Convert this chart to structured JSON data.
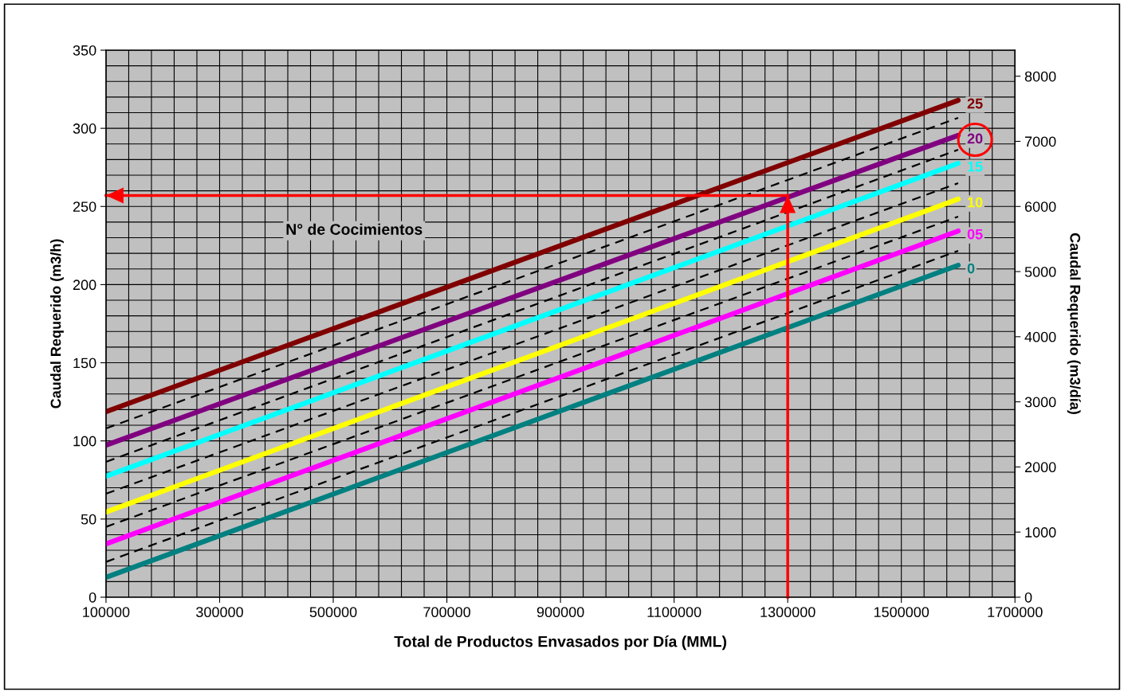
{
  "chart_data": {
    "type": "line",
    "xlabel": "Total de Productos Envasados por Día (MML)",
    "ylabel": "Caudal Requerido (m3/h)",
    "y2label": "Caudal Requerido (m3/día)",
    "annotations": [
      "N° de Cocimientos"
    ],
    "xlim": [
      100000,
      1700000
    ],
    "xticks": [
      100000,
      300000,
      500000,
      700000,
      900000,
      1100000,
      1300000,
      1500000,
      1700000
    ],
    "ylim": [
      0,
      350
    ],
    "yticks": [
      0,
      50,
      100,
      150,
      200,
      250,
      300,
      350
    ],
    "y2lim": [
      0,
      8400
    ],
    "y2ticks": [
      0,
      1000,
      2000,
      3000,
      4000,
      5000,
      6000,
      7000,
      8000
    ],
    "grid": true,
    "ref_lines": [
      {
        "axis": "x",
        "value": 1300000,
        "color": "#ff0000"
      },
      {
        "axis": "y",
        "value": 257,
        "color": "#ff0000"
      }
    ],
    "x": [
      100000,
      1600000
    ],
    "series": [
      {
        "name": "25",
        "color": "#800000",
        "values": [
          118.7,
          317.9
        ]
      },
      {
        "color": "#000000",
        "line_style": "dashed",
        "values": [
          108,
          306.7
        ]
      },
      {
        "name": "20",
        "color": "#800080",
        "values": [
          97.3,
          295.5
        ]
      },
      {
        "color": "#000000",
        "line_style": "dashed",
        "values": [
          86.6,
          286.3
        ]
      },
      {
        "name": "15",
        "color": "#00ffff",
        "values": [
          77.4,
          277.6
        ]
      },
      {
        "color": "#000000",
        "line_style": "dashed",
        "values": [
          66.2,
          264.9
        ]
      },
      {
        "name": "10",
        "color": "#ffff00",
        "values": [
          54.5,
          254.7
        ]
      },
      {
        "color": "#000000",
        "line_style": "dashed",
        "values": [
          45,
          243.5
        ]
      },
      {
        "name": "05",
        "color": "#ff00ff",
        "values": [
          34.1,
          234.3
        ]
      },
      {
        "color": "#000000",
        "line_style": "dashed",
        "values": [
          22.6,
          221.6
        ]
      },
      {
        "name": "0",
        "color": "#008080",
        "values": [
          12.7,
          212.4
        ]
      }
    ]
  }
}
